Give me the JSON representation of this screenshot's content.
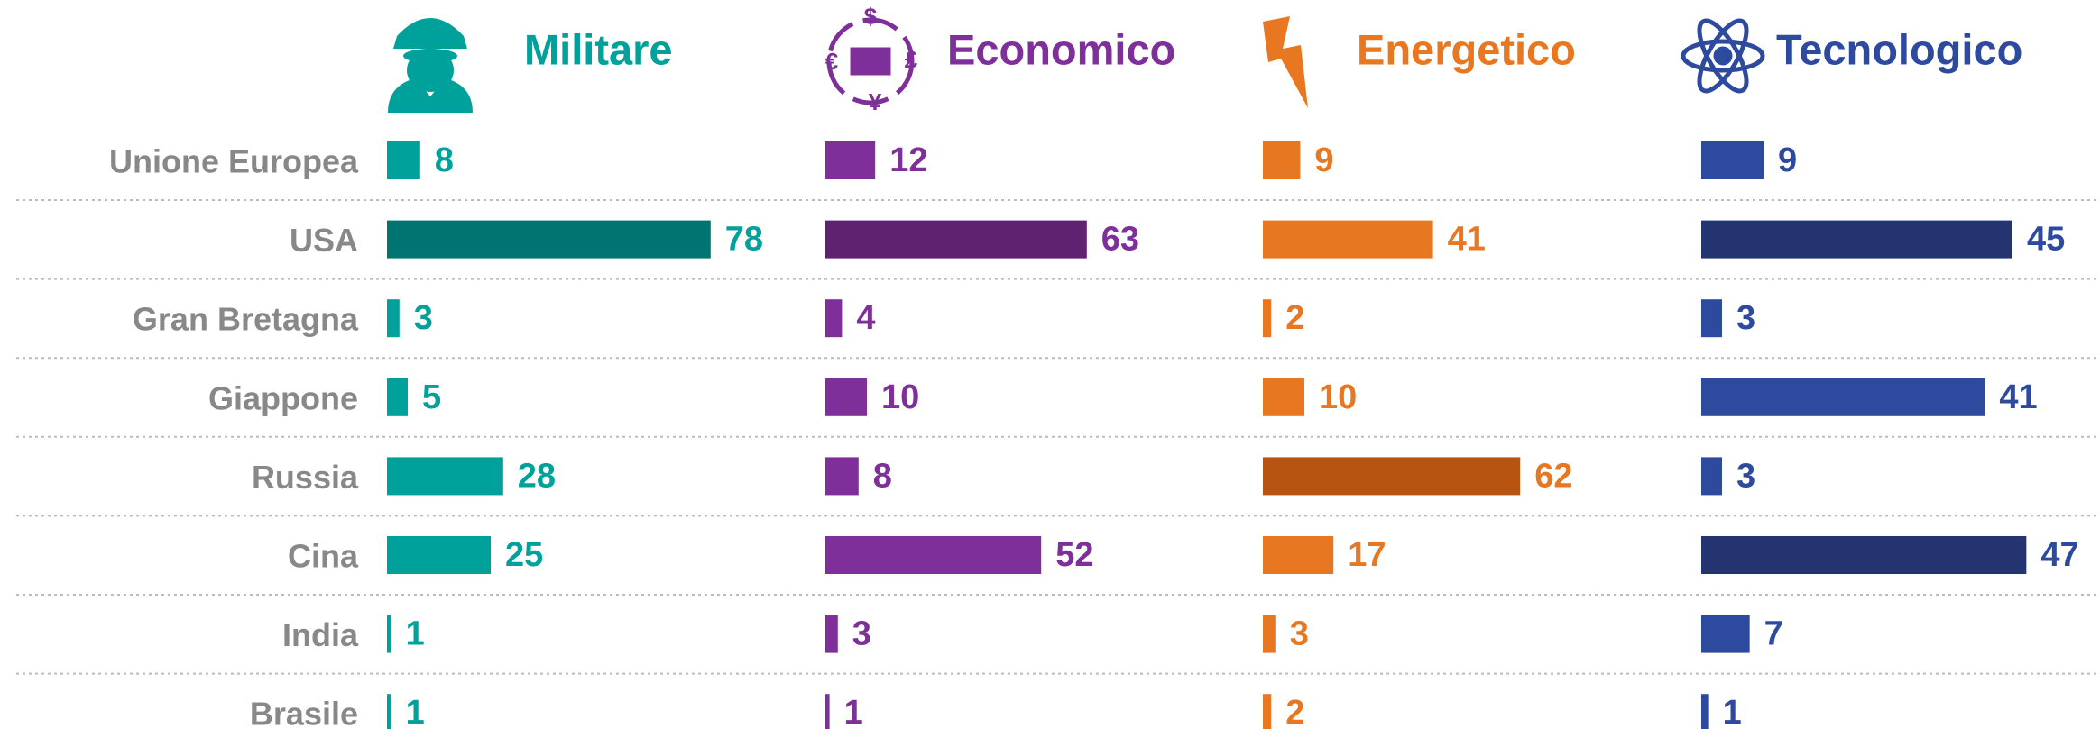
{
  "categories": [
    "Unione Europea",
    "USA",
    "Gran Bretagna",
    "Giappone",
    "Russia",
    "Cina",
    "India",
    "Brasile"
  ],
  "chart_data": [
    {
      "type": "bar",
      "title": "Militare",
      "values": [
        8,
        78,
        3,
        5,
        28,
        25,
        1,
        1
      ],
      "colors": [
        "#00a19a",
        "#007470",
        "#00a19a",
        "#00a19a",
        "#00a19a",
        "#00a19a",
        "#00a19a",
        "#00a19a"
      ],
      "color": "#00a19a",
      "xlim": [
        0,
        100
      ]
    },
    {
      "type": "bar",
      "title": "Economico",
      "values": [
        12,
        63,
        4,
        10,
        8,
        52,
        3,
        1
      ],
      "colors": [
        "#7f2f9a",
        "#5f2270",
        "#7f2f9a",
        "#7f2f9a",
        "#7f2f9a",
        "#7f2f9a",
        "#7f2f9a",
        "#7f2f9a"
      ],
      "color": "#7f2f9a",
      "xlim": [
        0,
        100
      ]
    },
    {
      "type": "bar",
      "title": "Energetico",
      "values": [
        9,
        41,
        2,
        10,
        62,
        17,
        3,
        2
      ],
      "colors": [
        "#e87722",
        "#e87722",
        "#e87722",
        "#e87722",
        "#b75412",
        "#e87722",
        "#e87722",
        "#e87722"
      ],
      "color": "#e87722",
      "xlim": [
        0,
        100
      ]
    },
    {
      "type": "bar",
      "title": "Tecnologico",
      "values": [
        9,
        45,
        3,
        41,
        3,
        47,
        7,
        1
      ],
      "colors": [
        "#2e4a9e",
        "#243470",
        "#2e4a9e",
        "#2e4a9e",
        "#2e4a9e",
        "#243470",
        "#2e4a9e",
        "#2e4a9e"
      ],
      "color": "#2e4a9e",
      "xlim": [
        0,
        60
      ]
    }
  ]
}
